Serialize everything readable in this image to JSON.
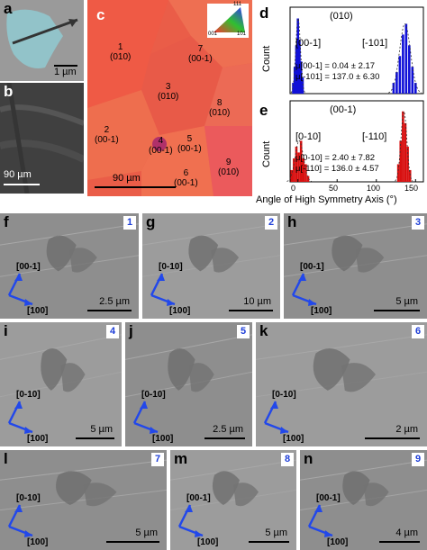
{
  "panel_a": {
    "letter": "a",
    "scale": "1 µm"
  },
  "panel_b": {
    "letter": "b",
    "scale": "90 µm"
  },
  "panel_c": {
    "letter": "c",
    "scale": "90 µm",
    "grains": [
      {
        "id": "1",
        "orient": "(010)"
      },
      {
        "id": "7",
        "orient": "(00-1)"
      },
      {
        "id": "3",
        "orient": "(010)"
      },
      {
        "id": "8",
        "orient": "(010)"
      },
      {
        "id": "2",
        "orient": "(00-1)"
      },
      {
        "id": "4",
        "orient": "(00-1)"
      },
      {
        "id": "5",
        "orient": "(00-1)"
      },
      {
        "id": "6",
        "orient": "(00-1)"
      },
      {
        "id": "9",
        "orient": "(010)"
      }
    ],
    "triangle_labels": [
      "001",
      "101",
      "111"
    ]
  },
  "panel_d": {
    "letter": "d",
    "plane": "(010)",
    "left_label": "[00-1]",
    "right_label": "[-101]",
    "mu1": "μ[00-1] = 0.04 ± 2.17",
    "mu2": "μ[-101] = 137.0 ± 6.30",
    "color": "#1010d8"
  },
  "panel_e": {
    "letter": "e",
    "plane": "(00-1)",
    "left_label": "[0-10]",
    "right_label": "[-110]",
    "mu1": "μ[0-10] = 2.40 ± 7.82",
    "mu2": "μ[-110] = 136.0 ± 4.57",
    "color": "#d81010"
  },
  "hist_axes": {
    "ylabel": "Count",
    "xlabel": "Angle of High Symmetry Axis (°)",
    "xticks": [
      "0",
      "50",
      "100",
      "150"
    ]
  },
  "chart_data": [
    {
      "type": "bar",
      "panel": "d",
      "xlabel": "Angle of High Symmetry Axis (°)",
      "ylabel": "Count",
      "xlim": [
        -10,
        160
      ],
      "series": [
        {
          "x": [
            -6,
            -4,
            -2,
            0,
            2,
            4,
            6
          ],
          "values": [
            2,
            5,
            9,
            14,
            10,
            6,
            3
          ]
        },
        {
          "x": [
            122,
            126,
            130,
            134,
            138,
            142,
            146,
            150
          ],
          "values": [
            2,
            4,
            7,
            11,
            13,
            9,
            5,
            2
          ]
        }
      ]
    },
    {
      "type": "bar",
      "panel": "e",
      "xlabel": "Angle of High Symmetry Axis (°)",
      "ylabel": "Count",
      "xlim": [
        -10,
        160
      ],
      "series": [
        {
          "x": [
            -8,
            -5,
            -2,
            1,
            4,
            7,
            10,
            13
          ],
          "values": [
            2,
            4,
            6,
            5,
            7,
            4,
            3,
            1
          ]
        },
        {
          "x": [
            128,
            131,
            134,
            137,
            140,
            143
          ],
          "values": [
            3,
            7,
            12,
            10,
            6,
            2
          ]
        }
      ]
    }
  ],
  "sem_panels": [
    {
      "letter": "f",
      "num": "1",
      "scale": "2.5 µm",
      "dir1": "[00-1]",
      "dir2": "[100]"
    },
    {
      "letter": "g",
      "num": "2",
      "scale": "10 µm",
      "dir1": "[0-10]",
      "dir2": "[100]"
    },
    {
      "letter": "h",
      "num": "3",
      "scale": "5 µm",
      "dir1": "[00-1]",
      "dir2": "[100]"
    },
    {
      "letter": "i",
      "num": "4",
      "scale": "5 µm",
      "dir1": "[0-10]",
      "dir2": "[100]"
    },
    {
      "letter": "j",
      "num": "5",
      "scale": "2.5 µm",
      "dir1": "[0-10]",
      "dir2": "[100]"
    },
    {
      "letter": "k",
      "num": "6",
      "scale": "2 µm",
      "dir1": "[0-10]",
      "dir2": "[100]"
    },
    {
      "letter": "l",
      "num": "7",
      "scale": "5 µm",
      "dir1": "[0-10]",
      "dir2": "[100]"
    },
    {
      "letter": "m",
      "num": "8",
      "scale": "5 µm",
      "dir1": "[00-1]",
      "dir2": "[100]"
    },
    {
      "letter": "n",
      "num": "9",
      "scale": "4 µm",
      "dir1": "[00-1]",
      "dir2": "[100]"
    }
  ]
}
